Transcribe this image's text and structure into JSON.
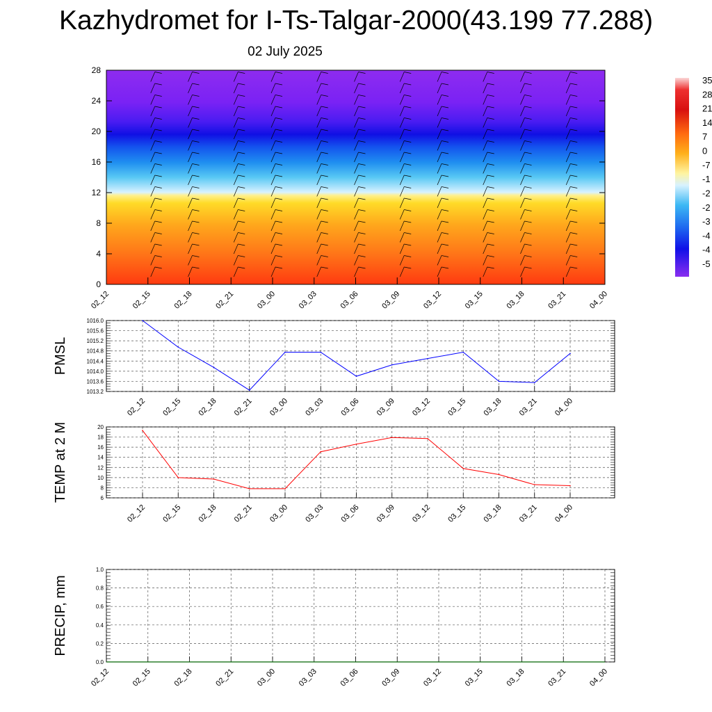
{
  "title": "Kazhydromet for I-Ts-Talgar-2000(43.199 77.288)",
  "subtitle": "02 July 2025",
  "colors": {
    "pmsl_line": "#0000ff",
    "temp_line": "#ff0000",
    "precip_line": "#006400",
    "grid": "#555555",
    "barb": "#000000"
  },
  "chart_data": [
    {
      "type": "heatmap",
      "name": "cross-section",
      "x": [
        "02_12",
        "02_15",
        "02_18",
        "02_21",
        "03_00",
        "03_03",
        "03_06",
        "03_09",
        "03_12",
        "03_15",
        "03_18",
        "03_21",
        "04_00"
      ],
      "ylim": [
        0,
        28
      ],
      "yticks": [
        "0",
        "4",
        "8",
        "12",
        "16",
        "20",
        "24",
        "28"
      ],
      "colorbar_labels": [
        "35",
        "28",
        "21",
        "14",
        "7",
        "0",
        "-7",
        "-1",
        "-2",
        "-2",
        "-3",
        "-4",
        "-4",
        "-5"
      ],
      "overlay": "wind barbs"
    },
    {
      "type": "line",
      "name": "pmsl",
      "ylabel": "PMSL",
      "x": [
        "02_12",
        "02_15",
        "02_18",
        "02_21",
        "03_00",
        "03_03",
        "03_06",
        "03_09",
        "03_12",
        "03_15",
        "03_18",
        "03_21",
        "04_00"
      ],
      "ylim": [
        1013.2,
        1016.0
      ],
      "yticks": [
        "1016.0",
        "1015.6",
        "1015.2",
        "1014.8",
        "1014.4",
        "1014.0",
        "1013.6",
        "1013.2"
      ],
      "series": [
        {
          "values": [
            1016.0,
            1014.95,
            1014.15,
            1013.25,
            1014.75,
            1014.75,
            1013.8,
            1014.25,
            1014.5,
            1014.75,
            1013.6,
            1013.55,
            1014.7
          ]
        }
      ]
    },
    {
      "type": "line",
      "name": "temp",
      "ylabel": "TEMP at 2 M",
      "x": [
        "02_12",
        "02_15",
        "02_18",
        "02_21",
        "03_00",
        "03_03",
        "03_06",
        "03_09",
        "03_12",
        "03_15",
        "03_18",
        "03_21",
        "04_00"
      ],
      "ylim": [
        6,
        20
      ],
      "yticks": [
        "20",
        "18",
        "16",
        "14",
        "12",
        "10",
        "8",
        "6"
      ],
      "series": [
        {
          "values": [
            19.3,
            10.0,
            9.7,
            7.8,
            7.8,
            15.1,
            16.6,
            17.9,
            17.7,
            11.8,
            10.6,
            8.6,
            8.4
          ]
        }
      ]
    },
    {
      "type": "line",
      "name": "precip",
      "ylabel": "PRECIP, mm",
      "x": [
        "02_12",
        "02_15",
        "02_18",
        "02_21",
        "03_00",
        "03_03",
        "03_06",
        "03_09",
        "03_12",
        "03_15",
        "03_18",
        "03_21",
        "04_00"
      ],
      "ylim": [
        0.0,
        1.0
      ],
      "yticks": [
        "1.0",
        "0.8",
        "0.6",
        "0.4",
        "0.2",
        "0.0"
      ],
      "series": [
        {
          "values": [
            0,
            0,
            0,
            0,
            0,
            0,
            0,
            0,
            0,
            0,
            0,
            0,
            0
          ]
        }
      ]
    }
  ]
}
